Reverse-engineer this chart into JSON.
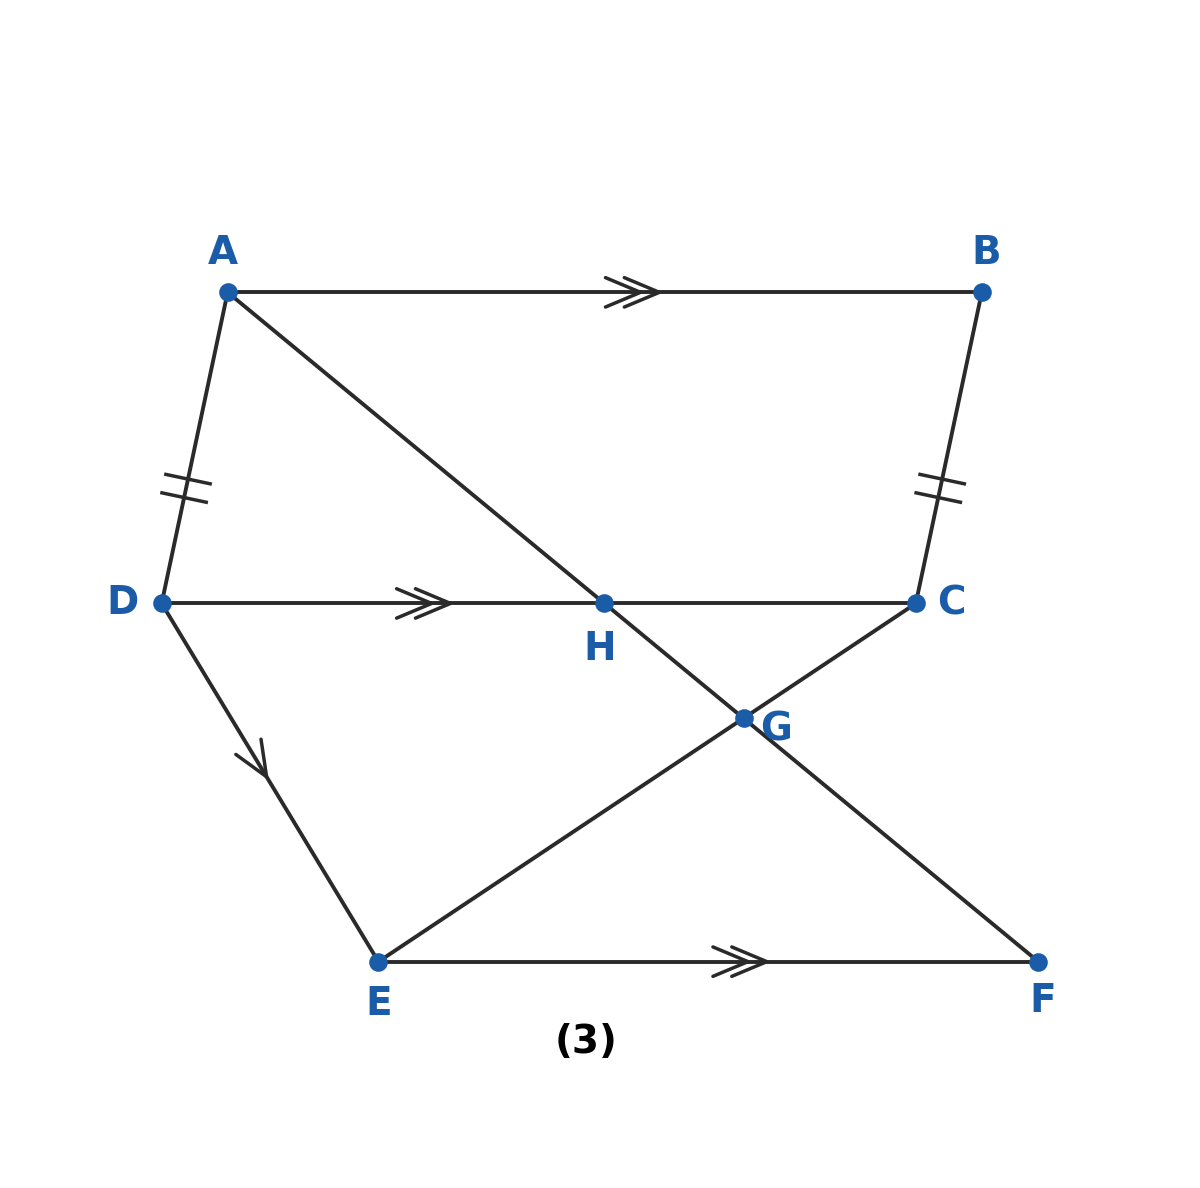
{
  "A": [
    2.2,
    8.6
  ],
  "B": [
    10.2,
    8.6
  ],
  "C": [
    9.5,
    5.3
  ],
  "D": [
    1.5,
    5.3
  ],
  "E": [
    3.8,
    1.5
  ],
  "F": [
    10.8,
    1.5
  ],
  "dot_color": "#1a5ca8",
  "dot_size": 180,
  "line_color": "#2a2a2a",
  "line_width": 2.8,
  "label_color": "#1a5ca8",
  "label_fontsize": 28,
  "label_fontweight": "bold",
  "background_color": "#ffffff",
  "figure_label": "(3)",
  "figure_label_fontsize": 28,
  "figure_label_fontweight": "bold",
  "xlim": [
    -0.2,
    12.5
  ],
  "ylim": [
    0.3,
    10.5
  ]
}
